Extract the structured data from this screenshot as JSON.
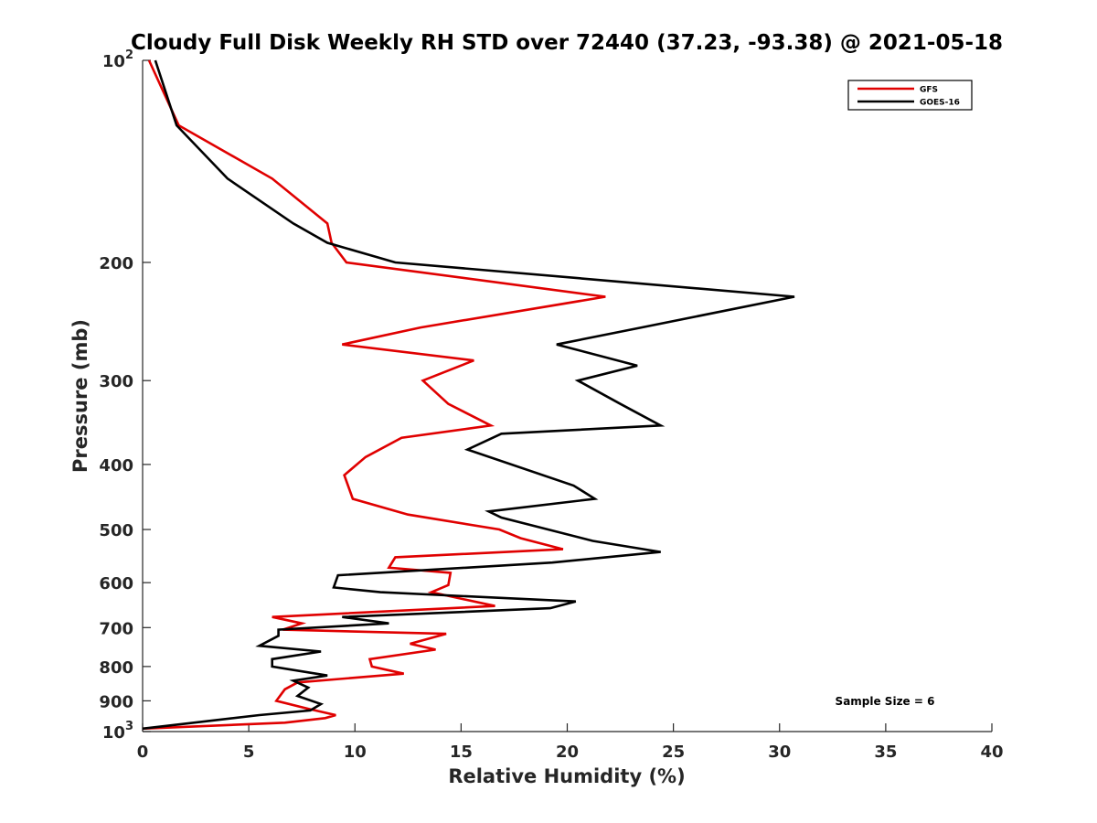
{
  "chart_data": {
    "type": "line",
    "title": "Cloudy Full Disk Weekly RH STD over 72440 (37.23, -93.38) @ 2021-05-18",
    "xlabel": "Relative Humidity (%)",
    "ylabel": "Pressure (mb)",
    "xlim": [
      0,
      40
    ],
    "ylim": [
      1000,
      100
    ],
    "y_scale": "log",
    "y_reversed": true,
    "x_ticks": [
      0,
      5,
      10,
      15,
      20,
      25,
      30,
      35,
      40
    ],
    "x_tick_labels": [
      "0",
      "5",
      "10",
      "15",
      "20",
      "25",
      "30",
      "35",
      "40"
    ],
    "y_ticks": [
      100,
      200,
      300,
      400,
      500,
      600,
      700,
      800,
      900,
      1000
    ],
    "y_tick_labels": [
      {
        "base": "10",
        "exp": "2"
      },
      {
        "base": "200",
        "exp": ""
      },
      {
        "base": "300",
        "exp": ""
      },
      {
        "base": "400",
        "exp": ""
      },
      {
        "base": "500",
        "exp": ""
      },
      {
        "base": "600",
        "exp": ""
      },
      {
        "base": "700",
        "exp": ""
      },
      {
        "base": "800",
        "exp": ""
      },
      {
        "base": "900",
        "exp": ""
      },
      {
        "base": "10",
        "exp": "3"
      }
    ],
    "grid": false,
    "legend_position": "top-right",
    "annotation": "Sample Size = 6",
    "series": [
      {
        "name": "GFS",
        "color": "#e00000",
        "points": [
          [
            0.3,
            100
          ],
          [
            1.7,
            125
          ],
          [
            6.1,
            150
          ],
          [
            8.7,
            175
          ],
          [
            8.9,
            187
          ],
          [
            9.6,
            200
          ],
          [
            21.8,
            225
          ],
          [
            13.1,
            250
          ],
          [
            9.4,
            265
          ],
          [
            15.6,
            280
          ],
          [
            13.2,
            300
          ],
          [
            14.4,
            325
          ],
          [
            16.4,
            350
          ],
          [
            12.2,
            365
          ],
          [
            10.5,
            390
          ],
          [
            9.5,
            415
          ],
          [
            9.9,
            450
          ],
          [
            12.5,
            475
          ],
          [
            16.8,
            500
          ],
          [
            17.8,
            515
          ],
          [
            19.8,
            535
          ],
          [
            11.9,
            550
          ],
          [
            11.6,
            570
          ],
          [
            14.5,
            580
          ],
          [
            14.4,
            605
          ],
          [
            13.6,
            620
          ],
          [
            16.6,
            650
          ],
          [
            6.1,
            675
          ],
          [
            7.5,
            690
          ],
          [
            6.6,
            705
          ],
          [
            14.3,
            715
          ],
          [
            12.6,
            740
          ],
          [
            13.8,
            755
          ],
          [
            10.7,
            780
          ],
          [
            10.8,
            800
          ],
          [
            12.3,
            820
          ],
          [
            7.3,
            845
          ],
          [
            6.7,
            865
          ],
          [
            6.3,
            900
          ],
          [
            7.8,
            925
          ],
          [
            9.1,
            945
          ],
          [
            8.6,
            955
          ],
          [
            6.7,
            970
          ],
          [
            0.0,
            990
          ]
        ]
      },
      {
        "name": "GOES-16",
        "color": "#000000",
        "points": [
          [
            0.6,
            100
          ],
          [
            1.6,
            125
          ],
          [
            4.0,
            150
          ],
          [
            7.1,
            175
          ],
          [
            8.7,
            187
          ],
          [
            11.9,
            200
          ],
          [
            30.7,
            225
          ],
          [
            23.5,
            250
          ],
          [
            19.5,
            265
          ],
          [
            23.3,
            285
          ],
          [
            20.5,
            300
          ],
          [
            22.5,
            325
          ],
          [
            24.4,
            350
          ],
          [
            16.9,
            360
          ],
          [
            15.3,
            380
          ],
          [
            20.3,
            430
          ],
          [
            21.3,
            450
          ],
          [
            16.3,
            470
          ],
          [
            16.9,
            480
          ],
          [
            21.2,
            520
          ],
          [
            24.4,
            540
          ],
          [
            19.3,
            560
          ],
          [
            9.2,
            585
          ],
          [
            9.0,
            610
          ],
          [
            11.2,
            620
          ],
          [
            20.4,
            640
          ],
          [
            19.2,
            655
          ],
          [
            9.4,
            675
          ],
          [
            11.6,
            690
          ],
          [
            6.4,
            705
          ],
          [
            6.4,
            720
          ],
          [
            5.5,
            745
          ],
          [
            8.4,
            760
          ],
          [
            6.1,
            780
          ],
          [
            6.1,
            800
          ],
          [
            8.7,
            825
          ],
          [
            7.1,
            840
          ],
          [
            7.8,
            860
          ],
          [
            7.3,
            885
          ],
          [
            8.4,
            910
          ],
          [
            7.9,
            930
          ],
          [
            5.5,
            945
          ],
          [
            0.0,
            990
          ]
        ]
      }
    ]
  }
}
